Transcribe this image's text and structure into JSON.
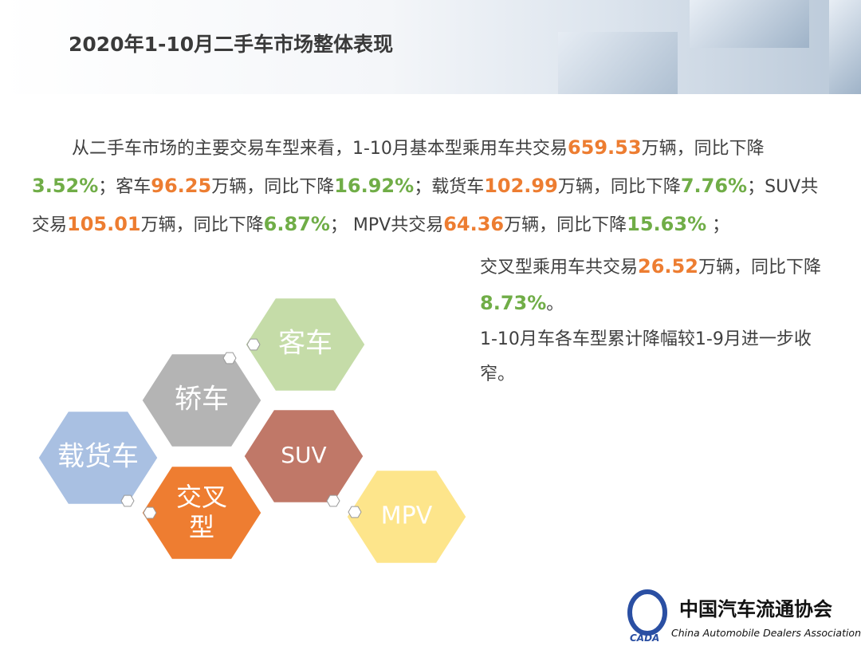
{
  "header": {
    "title": "2020年1-10月二手车市场整体表现"
  },
  "summary": {
    "segments": [
      {
        "text": "从二手车市场的主要交易车型来看，1-10月基本型乘用车共交易"
      },
      {
        "text": "659.53",
        "color": "#ed7d31"
      },
      {
        "text": "万辆，同比下降"
      },
      {
        "text": "3.52%",
        "color": "#70ad47"
      },
      {
        "text": "；客车"
      },
      {
        "text": "96.25",
        "color": "#ed7d31"
      },
      {
        "text": "万辆，同比下降"
      },
      {
        "text": "16.92%",
        "color": "#70ad47"
      },
      {
        "text": "；载货车"
      },
      {
        "text": "102.99",
        "color": "#ed7d31"
      },
      {
        "text": "万辆，同比下降"
      },
      {
        "text": "7.76%",
        "color": "#70ad47"
      },
      {
        "text": "；SUV共交易"
      },
      {
        "text": "105.01",
        "color": "#ed7d31"
      },
      {
        "text": "万辆，同比下降"
      },
      {
        "text": "6.87%",
        "color": "#70ad47"
      },
      {
        "text": "； MPV共交易"
      },
      {
        "text": "64.36",
        "color": "#ed7d31"
      },
      {
        "text": "万辆，同比下降"
      },
      {
        "text": "15.63%",
        "color": "#70ad47"
      },
      {
        "text": " ；"
      }
    ]
  },
  "side_note": {
    "segments": [
      {
        "text": "交叉型乘用车共交易"
      },
      {
        "text": "26.52",
        "color": "#ed7d31"
      },
      {
        "text": "万辆，同比下降"
      },
      {
        "text": "8.73%",
        "color": "#70ad47"
      },
      {
        "text": "。"
      }
    ],
    "conclusion": "1-10月车各车型累计降幅较1-9月进一步收窄。"
  },
  "hexagons": [
    {
      "label": "客车",
      "color": "#c5dca8"
    },
    {
      "label": "轿车",
      "color": "#b4b4b4"
    },
    {
      "label": "载货车",
      "color": "#a9c0e2"
    },
    {
      "label": "SUV",
      "color": "#c07868"
    },
    {
      "label": "交叉型",
      "color": "#ee7d31"
    },
    {
      "label": "MPV",
      "color": "#fde58b"
    }
  ],
  "logo": {
    "abbr": "CADA",
    "name_cn": "中国汽车流通协会",
    "name_en": "China Automobile Dealers Association"
  }
}
